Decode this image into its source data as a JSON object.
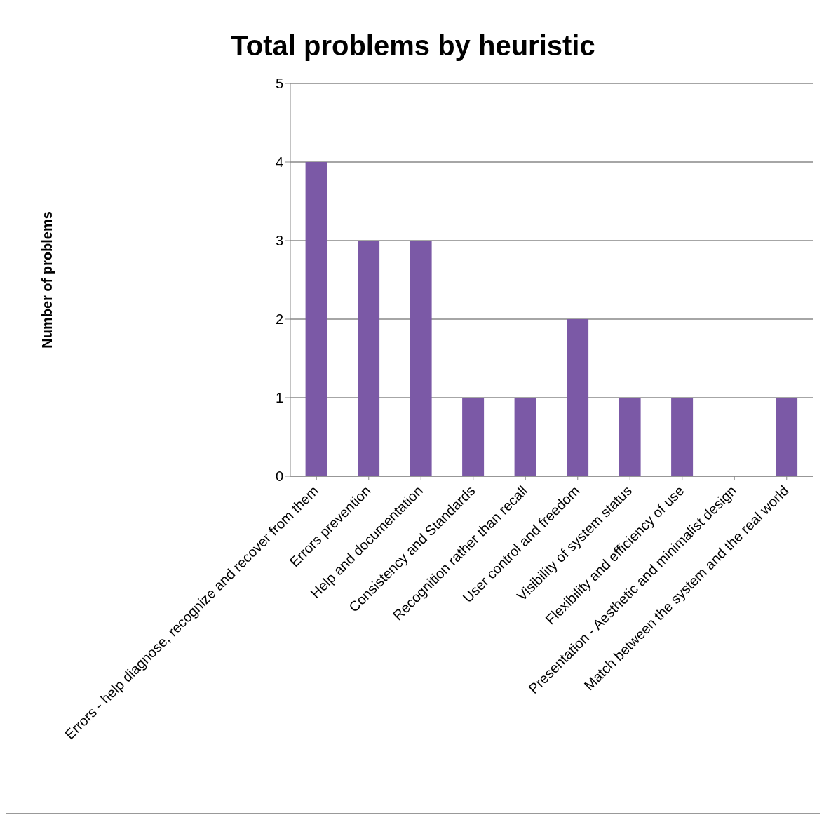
{
  "chart_data": {
    "type": "bar",
    "title": "Total problems by heuristic",
    "ylabel": "Number of problems",
    "categories": [
      "Errors - help diagnose, recognize and recover from them",
      "Errors prevention",
      "Help and documentation",
      "Consistency and Standards",
      "Recognition rather than recall",
      "User control and freedom",
      "Visibility of system status",
      "Flexibility and efficiency of use",
      "Presentation - Aesthetic and minimalist design",
      "Match between the system and the real world"
    ],
    "values": [
      4,
      3,
      3,
      1,
      1,
      2,
      1,
      1,
      0,
      1
    ],
    "color": "#7b59a6",
    "ylim": [
      0,
      5
    ],
    "yticks": [
      0,
      1,
      2,
      3,
      4,
      5
    ],
    "grid": "y"
  }
}
